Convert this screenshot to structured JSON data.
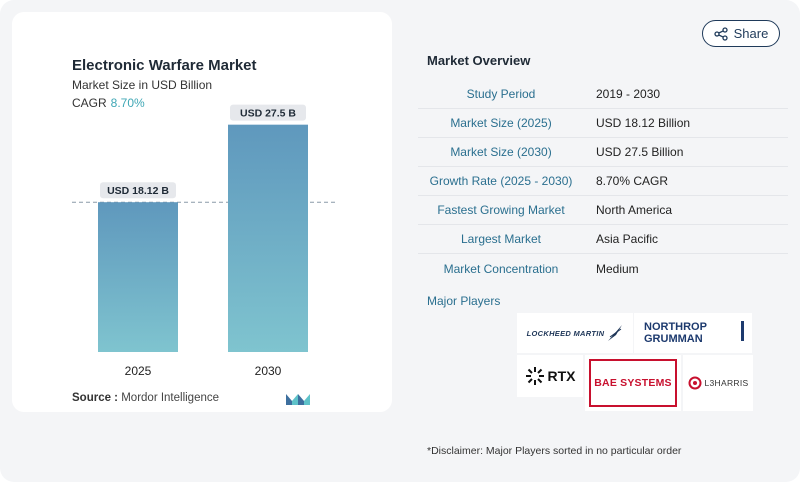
{
  "chart": {
    "title": "Electronic Warfare Market",
    "subtitle": "Market Size in USD Billion",
    "cagr_label": "CAGR",
    "cagr_value": "8.70%",
    "source_label": "Source :",
    "source_value": "Mordor Intelligence"
  },
  "chart_data": {
    "type": "bar",
    "categories": [
      "2025",
      "2030"
    ],
    "values": [
      18.12,
      27.5
    ],
    "data_labels": [
      "USD 18.12 B",
      "USD 27.5 B"
    ],
    "ylim": [
      0,
      30
    ],
    "grid": false,
    "reference_line_at": 18.12,
    "colors": {
      "bar_top": "#5f98bd",
      "bar_bottom": "#7fc4cf",
      "label_bg": "#e6e8ec"
    }
  },
  "share": {
    "label": "Share",
    "icon": "share-icon"
  },
  "overview": {
    "title": "Market Overview",
    "rows": [
      {
        "label": "Study Period",
        "value": "2019 - 2030"
      },
      {
        "label": "Market Size (2025)",
        "value": "USD 18.12 Billion"
      },
      {
        "label": "Market Size (2030)",
        "value": "USD 27.5 Billion"
      },
      {
        "label": "Growth Rate (2025 - 2030)",
        "value": "8.70% CAGR"
      },
      {
        "label": "Fastest Growing Market",
        "value": "North America"
      },
      {
        "label": "Largest Market",
        "value": "Asia Pacific"
      },
      {
        "label": "Market Concentration",
        "value": "Medium"
      }
    ]
  },
  "players": {
    "title": "Major Players",
    "logos": {
      "lockheed": "LOCKHEED MARTIN",
      "northrop_1": "NORTHROP",
      "northrop_2": "GRUMMAN",
      "rtx": "RTX",
      "bae": "BAE SYSTEMS",
      "l3harris": "L3HARRIS"
    }
  },
  "disclaimer": "*Disclaimer: Major Players sorted in no particular order",
  "colors": {
    "accent": "#2a6f8f",
    "cagr": "#3fa7b5",
    "bae_red": "#c8102e"
  }
}
